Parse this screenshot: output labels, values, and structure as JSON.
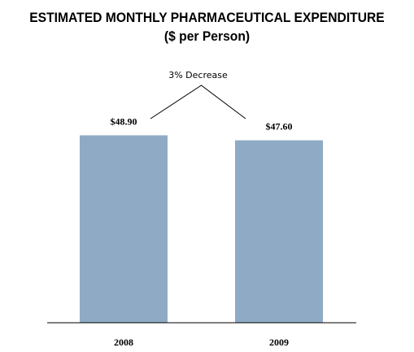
{
  "chart_data": {
    "type": "bar",
    "title": "ESTIMATED MONTHLY PHARMACEUTICAL EXPENDITURE",
    "subtitle": "($ per Person)",
    "categories": [
      "2008",
      "2009"
    ],
    "values": [
      48.9,
      47.6
    ],
    "value_labels": [
      "$48.90",
      "$47.60"
    ],
    "annotation": "3% Decrease",
    "bar_color": "#8eaac5",
    "axis_color": "#000000",
    "grid": false,
    "legend": "none",
    "ylim": [
      0,
      63
    ]
  }
}
